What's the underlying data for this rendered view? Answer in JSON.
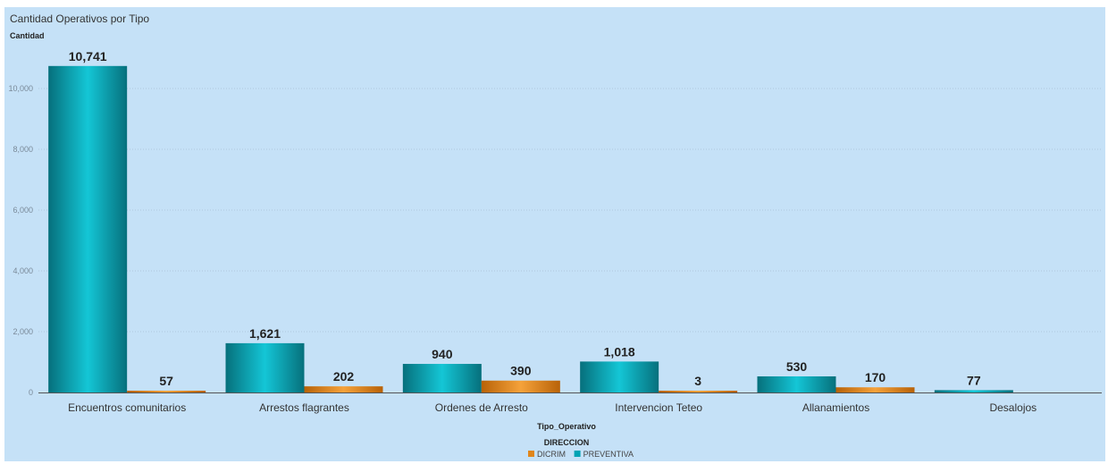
{
  "chart_data": {
    "type": "bar",
    "title": "Cantidad Operativos por Tipo",
    "ylabel": "Cantidad",
    "xlabel": "Tipo_Operativo",
    "categories": [
      "Encuentros comunitarios",
      "Arrestos flagrantes",
      "Ordenes de Arresto",
      "Intervencion Teteo",
      "Allanamientos",
      "Desalojos"
    ],
    "series": [
      {
        "name": "PREVENTIVA",
        "values": [
          10741,
          1621,
          940,
          1018,
          530,
          77
        ],
        "color": "#00a3b4"
      },
      {
        "name": "DICRIM",
        "values": [
          57,
          202,
          390,
          3,
          170,
          null
        ],
        "color": "#e0861a"
      }
    ],
    "data_labels": {
      "PREVENTIVA": [
        "10,741",
        "1,621",
        "940",
        "1,018",
        "530",
        "77"
      ],
      "DICRIM": [
        "57",
        "202",
        "390",
        "3",
        "170",
        ""
      ]
    },
    "yticks": [
      "0",
      "2,000",
      "4,000",
      "6,000",
      "8,000",
      "10,000"
    ],
    "ytick_values": [
      0,
      2000,
      4000,
      6000,
      8000,
      10000
    ],
    "ylim": [
      0,
      11000
    ],
    "grid": true,
    "legend": {
      "title": "DIRECCION",
      "placement": "bottom-center",
      "items": [
        {
          "label": "DICRIM",
          "color": "#e0861a"
        },
        {
          "label": "PREVENTIVA",
          "color": "#00a3b4"
        }
      ]
    }
  }
}
